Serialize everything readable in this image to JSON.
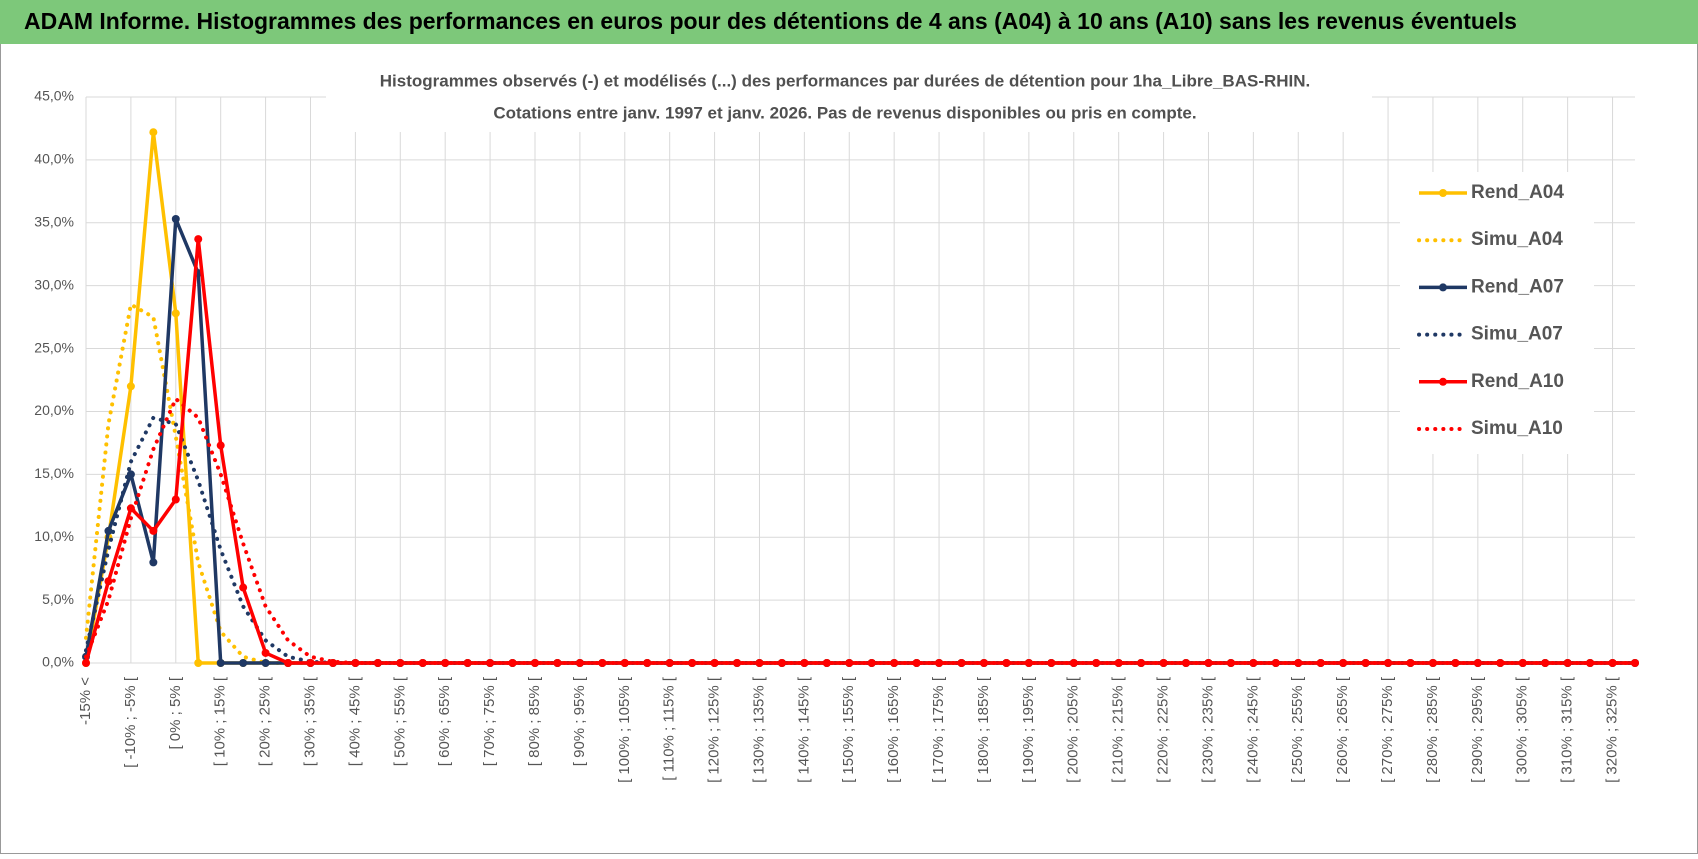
{
  "header": {
    "title": "ADAM Informe. Histogrammes des performances en euros pour des détentions de 4 ans (A04) à 10 ans (A10) sans les revenus éventuels"
  },
  "chart_data": {
    "type": "line",
    "title": "Histogrammes observés (-) et modélisés (...) des performances par durées de détention pour 1ha_Libre_BAS-RHIN.",
    "subtitle": "Cotations entre janv. 1997 et janv. 2026. Pas de revenus disponibles ou pris en compte.",
    "categories": [
      "-15% <",
      null,
      "[ -10% ; -5% [",
      null,
      "[ 0% ; 5% [",
      null,
      "[ 10% ; 15% [",
      null,
      "[ 20% ; 25% [",
      null,
      "[ 30% ; 35% [",
      null,
      "[ 40% ; 45% [",
      null,
      "[ 50% ; 55% [",
      null,
      "[ 60% ; 65% [",
      null,
      "[ 70% ; 75% [",
      null,
      "[ 80% ; 85% [",
      null,
      "[ 90% ; 95% [",
      null,
      "[ 100% ; 105% [",
      null,
      "[ 110% ; 115% [",
      null,
      "[ 120% ; 125% [",
      null,
      "[ 130% ; 135% [",
      null,
      "[ 140% ; 145% [",
      null,
      "[ 150% ; 155% [",
      null,
      "[ 160% ; 165% [",
      null,
      "[ 170% ; 175% [",
      null,
      "[ 180% ; 185% [",
      null,
      "[ 190% ; 195% [",
      null,
      "[ 200% ; 205% [",
      null,
      "[ 210% ; 215% [",
      null,
      "[ 220% ; 225% [",
      null,
      "[ 230% ; 235% [",
      null,
      "[ 240% ; 245% [",
      null,
      "[ 250% ; 255% [",
      null,
      "[ 260% ; 265% [",
      null,
      "[ 270% ; 275% [",
      null,
      "[ 280% ; 285% [",
      null,
      "[ 290% ; 295% [",
      null,
      "[ 300% ; 305% [",
      null,
      "[ 310% ; 315% [",
      null,
      "[ 320% ; 325% [",
      null
    ],
    "series": [
      {
        "name": "Rend_A04",
        "color": "#ffc000",
        "line_style": "solid",
        "markers": true,
        "values": [
          0,
          10,
          22,
          42.2,
          27.8,
          0,
          0,
          0,
          0,
          0,
          0,
          0,
          0,
          0,
          0,
          0,
          0,
          0,
          0,
          0,
          0,
          0,
          0,
          0,
          0,
          0,
          0,
          0,
          0,
          0,
          0,
          0,
          0,
          0,
          0,
          0,
          0,
          0,
          0,
          0,
          0,
          0,
          0,
          0,
          0,
          0,
          0,
          0,
          0,
          0,
          0,
          0,
          0,
          0,
          0,
          0,
          0,
          0,
          0,
          0,
          0,
          0,
          0,
          0,
          0,
          0,
          0,
          0,
          0,
          0
        ]
      },
      {
        "name": "Simu_A04",
        "color": "#ffc000",
        "line_style": "dotted",
        "markers": false,
        "values": [
          2,
          19,
          28.5,
          27.5,
          18,
          8,
          2.5,
          0.5,
          0,
          0,
          0,
          0,
          0,
          0,
          0,
          0,
          0,
          0,
          0,
          0,
          0,
          0,
          0,
          0,
          0,
          0,
          0,
          0,
          0,
          0,
          0,
          0,
          0,
          0,
          0,
          0,
          0,
          0,
          0,
          0,
          0,
          0,
          0,
          0,
          0,
          0,
          0,
          0,
          0,
          0,
          0,
          0,
          0,
          0,
          0,
          0,
          0,
          0,
          0,
          0,
          0,
          0,
          0,
          0,
          0,
          0,
          0,
          0,
          0,
          0
        ]
      },
      {
        "name": "Rend_A07",
        "color": "#1f3864",
        "line_style": "solid",
        "markers": true,
        "values": [
          0.5,
          10.5,
          15,
          8,
          35.3,
          31,
          0,
          0,
          0,
          0,
          0,
          0,
          0,
          0,
          0,
          0,
          0,
          0,
          0,
          0,
          0,
          0,
          0,
          0,
          0,
          0,
          0,
          0,
          0,
          0,
          0,
          0,
          0,
          0,
          0,
          0,
          0,
          0,
          0,
          0,
          0,
          0,
          0,
          0,
          0,
          0,
          0,
          0,
          0,
          0,
          0,
          0,
          0,
          0,
          0,
          0,
          0,
          0,
          0,
          0,
          0,
          0,
          0,
          0,
          0,
          0,
          0,
          0,
          0,
          0
        ]
      },
      {
        "name": "Simu_A07",
        "color": "#1f3864",
        "line_style": "dotted",
        "markers": false,
        "values": [
          1,
          9,
          16,
          19.5,
          19,
          14.5,
          9,
          4.5,
          1.8,
          0.5,
          0.1,
          0,
          0,
          0,
          0,
          0,
          0,
          0,
          0,
          0,
          0,
          0,
          0,
          0,
          0,
          0,
          0,
          0,
          0,
          0,
          0,
          0,
          0,
          0,
          0,
          0,
          0,
          0,
          0,
          0,
          0,
          0,
          0,
          0,
          0,
          0,
          0,
          0,
          0,
          0,
          0,
          0,
          0,
          0,
          0,
          0,
          0,
          0,
          0,
          0,
          0,
          0,
          0,
          0,
          0,
          0,
          0,
          0,
          0,
          0
        ]
      },
      {
        "name": "Rend_A10",
        "color": "#ff0000",
        "line_style": "solid",
        "markers": true,
        "values": [
          0,
          6.5,
          12.3,
          10.5,
          13,
          33.7,
          17.3,
          6,
          0.8,
          0,
          0,
          0,
          0,
          0,
          0,
          0,
          0,
          0,
          0,
          0,
          0,
          0,
          0,
          0,
          0,
          0,
          0,
          0,
          0,
          0,
          0,
          0,
          0,
          0,
          0,
          0,
          0,
          0,
          0,
          0,
          0,
          0,
          0,
          0,
          0,
          0,
          0,
          0,
          0,
          0,
          0,
          0,
          0,
          0,
          0,
          0,
          0,
          0,
          0,
          0,
          0,
          0,
          0,
          0,
          0,
          0,
          0,
          0,
          0,
          0
        ]
      },
      {
        "name": "Simu_A10",
        "color": "#ff0000",
        "line_style": "dotted",
        "markers": false,
        "values": [
          0.5,
          5,
          11.5,
          17,
          21,
          19.5,
          15,
          9.5,
          4.5,
          1.8,
          0.5,
          0.1,
          0,
          0,
          0,
          0,
          0,
          0,
          0,
          0,
          0,
          0,
          0,
          0,
          0,
          0,
          0,
          0,
          0,
          0,
          0,
          0,
          0,
          0,
          0,
          0,
          0,
          0,
          0,
          0,
          0,
          0,
          0,
          0,
          0,
          0,
          0,
          0,
          0,
          0,
          0,
          0,
          0,
          0,
          0,
          0,
          0,
          0,
          0,
          0,
          0,
          0,
          0,
          0,
          0,
          0,
          0,
          0,
          0,
          0
        ]
      }
    ],
    "ylim": [
      0,
      45
    ],
    "yticks": [
      {
        "value": 0,
        "label": "0,0%"
      },
      {
        "value": 5,
        "label": "5,0%"
      },
      {
        "value": 10,
        "label": "10,0%"
      },
      {
        "value": 15,
        "label": "15,0%"
      },
      {
        "value": 20,
        "label": "20,0%"
      },
      {
        "value": 25,
        "label": "25,0%"
      },
      {
        "value": 30,
        "label": "30,0%"
      },
      {
        "value": 35,
        "label": "35,0%"
      },
      {
        "value": 40,
        "label": "40,0%"
      },
      {
        "value": 45,
        "label": "45,0%"
      }
    ],
    "grid": true,
    "legend": "right"
  }
}
